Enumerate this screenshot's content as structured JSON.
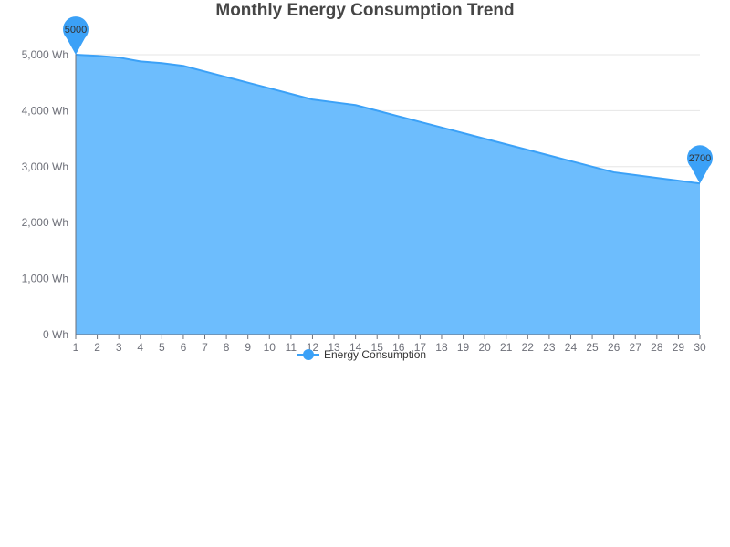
{
  "chart_data": {
    "type": "area",
    "title": "Monthly Energy Consumption Trend",
    "xlabel": "",
    "ylabel": "",
    "x": [
      1,
      2,
      3,
      4,
      5,
      6,
      7,
      8,
      9,
      10,
      11,
      12,
      13,
      14,
      15,
      16,
      17,
      18,
      19,
      20,
      21,
      22,
      23,
      24,
      25,
      26,
      27,
      28,
      29,
      30
    ],
    "y_unit_suffix": " Wh",
    "ylim": [
      0,
      5000
    ],
    "y_ticks": [
      0,
      1000,
      2000,
      3000,
      4000,
      5000
    ],
    "y_tick_labels": [
      "0 Wh",
      "1,000 Wh",
      "2,000 Wh",
      "3,000 Wh",
      "4,000 Wh",
      "5,000 Wh"
    ],
    "grid": true,
    "legend_position": "bottom-center",
    "series": [
      {
        "name": "Energy Consumption",
        "color": "#3ba1f7",
        "fill_color": "#6dbdfd",
        "values": [
          5000,
          4980,
          4950,
          4880,
          4850,
          4800,
          4700,
          4600,
          4500,
          4400,
          4300,
          4200,
          4150,
          4100,
          4000,
          3900,
          3800,
          3700,
          3600,
          3500,
          3400,
          3300,
          3200,
          3100,
          3000,
          2900,
          2850,
          2800,
          2750,
          2700
        ]
      }
    ],
    "markers": [
      {
        "x": 1,
        "value": 5000,
        "label": "5000"
      },
      {
        "x": 30,
        "value": 2700,
        "label": "2700"
      }
    ]
  }
}
